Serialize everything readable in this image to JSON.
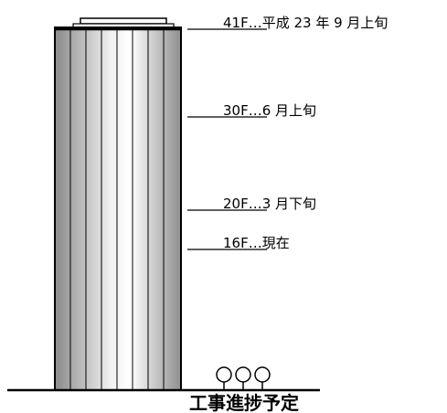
{
  "footer": {
    "caption": "工事進捗予定"
  },
  "milestones": [
    {
      "floor": "41F",
      "separator": "…",
      "when": "平成 23 年 9 月上旬"
    },
    {
      "floor": "30F",
      "separator": "…",
      "when": "6 月上旬"
    },
    {
      "floor": "20F",
      "separator": "…",
      "when": "3 月下旬"
    },
    {
      "floor": "16F",
      "separator": "…",
      "when": "現在"
    }
  ],
  "colors": {
    "outline": "#000000",
    "shade_dark": "#8a8a8a",
    "shade_light": "#ffffff"
  }
}
